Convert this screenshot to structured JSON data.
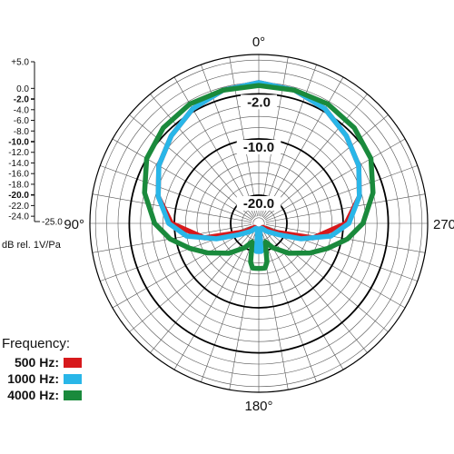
{
  "chart_data": {
    "type": "polar",
    "angle_labels": [
      {
        "angle": 0,
        "label": "0°"
      },
      {
        "angle": 90,
        "label": "90°"
      },
      {
        "angle": 180,
        "label": "180°"
      },
      {
        "angle": 270,
        "label": "270°"
      }
    ],
    "ring_labels": [
      "-2.0",
      "-10.0",
      "-20.0"
    ],
    "bold_rings": [
      -2.0,
      -10.0,
      -20.0
    ],
    "db_range": [
      -25.0,
      5.0
    ],
    "scale_ticks": [
      {
        "value": 5.0,
        "label": "+5.0",
        "major": false
      },
      {
        "value": 0.0,
        "label": "0.0",
        "major": false
      },
      {
        "value": -2.0,
        "label": "-2.0",
        "major": true
      },
      {
        "value": -4.0,
        "label": "-4.0",
        "major": false
      },
      {
        "value": -6.0,
        "label": "-6.0",
        "major": false
      },
      {
        "value": -8.0,
        "label": "-8.0",
        "major": false
      },
      {
        "value": -10.0,
        "label": "-10.0",
        "major": true
      },
      {
        "value": -12.0,
        "label": "-12.0",
        "major": false
      },
      {
        "value": -14.0,
        "label": "-14.0",
        "major": false
      },
      {
        "value": -16.0,
        "label": "-16.0",
        "major": false
      },
      {
        "value": -18.0,
        "label": "-18.0",
        "major": false
      },
      {
        "value": -20.0,
        "label": "-20.0",
        "major": true
      },
      {
        "value": -22.0,
        "label": "-22.0",
        "major": false
      },
      {
        "value": -24.0,
        "label": "-24.0",
        "major": false
      },
      {
        "value": -25.0,
        "label": "-25.0",
        "major": false
      }
    ],
    "unit_label": "dB rel. 1V/Pa",
    "legend_title": "Frequency:",
    "series": [
      {
        "name": "500 Hz:",
        "color": "#d7191c",
        "angles": [
          0,
          15,
          30,
          45,
          60,
          75,
          90,
          105,
          120,
          135,
          150,
          165,
          170,
          175,
          180,
          185,
          190,
          195,
          200,
          210,
          225,
          240,
          255,
          270,
          285,
          300,
          315,
          330,
          345
        ],
        "values": [
          0,
          -0.5,
          -1.5,
          -3,
          -4.5,
          -6.5,
          -9.5,
          -15,
          -22,
          -24,
          -24,
          -24,
          -24,
          -21,
          -21,
          -21,
          -24,
          -24,
          -24,
          -24,
          -24,
          -22,
          -15,
          -9.5,
          -6.5,
          -4.5,
          -3,
          -1.5,
          -0.5
        ]
      },
      {
        "name": "1000 Hz:",
        "color": "#29b6e8",
        "angles": [
          0,
          15,
          30,
          45,
          60,
          75,
          90,
          100,
          110,
          120,
          135,
          150,
          165,
          170,
          175,
          180,
          185,
          190,
          195,
          210,
          225,
          240,
          250,
          260,
          270,
          285,
          300,
          315,
          330,
          345
        ],
        "values": [
          0,
          -0.5,
          -1.5,
          -3,
          -4.5,
          -6.5,
          -9,
          -12,
          -17,
          -21,
          -23,
          -24,
          -24,
          -24,
          -20,
          -20,
          -20,
          -24,
          -24,
          -24,
          -23,
          -21,
          -17,
          -12,
          -9,
          -6.5,
          -4.5,
          -3,
          -1.5,
          -0.5
        ]
      },
      {
        "name": "4000 Hz:",
        "color": "#1a8a3c",
        "angles": [
          0,
          15,
          30,
          45,
          60,
          75,
          90,
          100,
          110,
          120,
          135,
          150,
          160,
          165,
          168,
          172,
          176,
          180,
          184,
          188,
          192,
          195,
          200,
          210,
          225,
          240,
          250,
          260,
          270,
          285,
          300,
          315,
          330,
          345
        ],
        "values": [
          -0.5,
          -0.5,
          -0.5,
          -1,
          -2,
          -4,
          -6.5,
          -9,
          -12,
          -14.5,
          -17.5,
          -20,
          -21.5,
          -20,
          -18,
          -17,
          -17,
          -17,
          -17,
          -17,
          -18,
          -20,
          -21.5,
          -20,
          -17.5,
          -14.5,
          -12,
          -9,
          -6.5,
          -4,
          -2,
          -1,
          -0.5,
          -0.5
        ]
      }
    ]
  }
}
